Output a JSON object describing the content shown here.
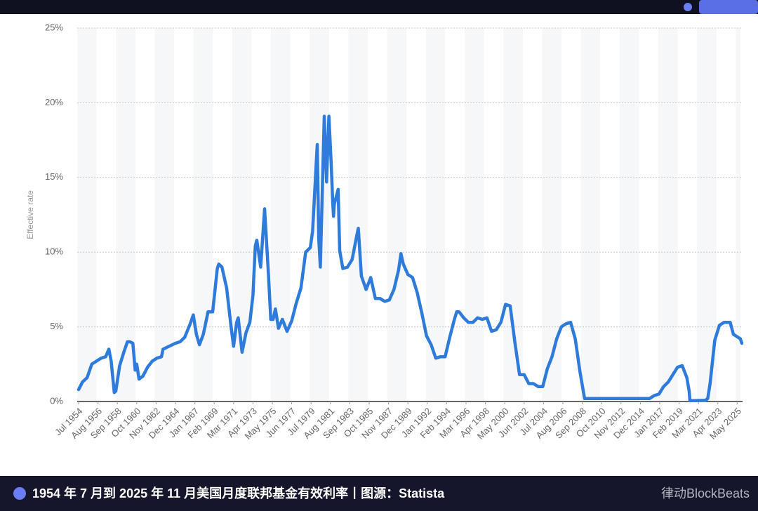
{
  "chart_data": {
    "type": "line",
    "y_label": "Effective rate",
    "caption": "1954 年 7 月到 2025 年 11 月美国月度联邦基金有效利率丨图源：Statista",
    "watermark": "律动BlockBeats",
    "color": "#2e7bdc",
    "grid": true,
    "xlim": [
      "Jul 1954",
      "Nov 2025"
    ],
    "xticks": [
      "Jul 1954",
      "Aug 1956",
      "Sep 1958",
      "Oct 1960",
      "Nov 1962",
      "Dec 1964",
      "Jan 1967",
      "Feb 1969",
      "Mar 1971",
      "Apr 1973",
      "May 1975",
      "Jun 1977",
      "Jul 1979",
      "Aug 1981",
      "Sep 1983",
      "Oct 1985",
      "Nov 1987",
      "Dec 1989",
      "Jan 1992",
      "Feb 1994",
      "Mar 1996",
      "Apr 1998",
      "May 2000",
      "Jun 2002",
      "Jul 2004",
      "Aug 2006",
      "Sep 2008",
      "Oct 2010",
      "Nov 2012",
      "Dec 2014",
      "Jan 2017",
      "Feb 2019",
      "Mar 2021",
      "Apr 2023",
      "May 2025"
    ],
    "ylim": [
      0,
      25
    ],
    "yticks": [
      {
        "value": 0,
        "label": "0%"
      },
      {
        "value": 5,
        "label": "5%"
      },
      {
        "value": 10,
        "label": "10%"
      },
      {
        "value": 15,
        "label": "15%"
      },
      {
        "value": 20,
        "label": "20%"
      },
      {
        "value": 25,
        "label": "25%"
      }
    ],
    "x": [
      "Jul 1954",
      "Dec 1954",
      "Jun 1955",
      "Dec 1955",
      "Jun 1956",
      "Dec 1956",
      "Jun 1957",
      "Oct 1957",
      "Jan 1958",
      "May 1958",
      "Jul 1958",
      "Dec 1958",
      "Jun 1959",
      "Oct 1959",
      "Jan 1960",
      "May 1960",
      "Aug 1960",
      "Oct 1960",
      "Jan 1961",
      "Jun 1961",
      "Dec 1961",
      "Jun 1962",
      "Dec 1962",
      "Jun 1963",
      "Aug 1963",
      "Dec 1964",
      "Jun 1965",
      "Dec 1965",
      "Jul 1966",
      "Nov 1966",
      "Mar 1967",
      "Jul 1967",
      "Dec 1967",
      "Jun 1968",
      "Dec 1968",
      "Jun 1969",
      "Aug 1969",
      "Dec 1969",
      "Jun 1970",
      "Dec 1970",
      "Mar 1971",
      "Jul 1971",
      "Sep 1971",
      "Feb 1972",
      "Jul 1972",
      "Dec 1972",
      "Apr 1973",
      "Jul 1973",
      "Sep 1973",
      "Feb 1974",
      "Jul 1974",
      "Dec 1974",
      "Mar 1975",
      "Jun 1975",
      "Sep 1975",
      "Jan 1976",
      "Jun 1976",
      "Dec 1976",
      "Jun 1977",
      "Dec 1977",
      "Jun 1978",
      "Dec 1978",
      "Jun 1979",
      "Sep 1979",
      "Mar 1980",
      "May 1980",
      "Jul 1980",
      "Dec 1980",
      "Mar 1981",
      "Jun 1981",
      "Sep 1981",
      "Nov 1981",
      "Dec 1981",
      "Jan 1982",
      "Jun 1982",
      "Aug 1982",
      "Dec 1982",
      "Jun 1983",
      "Dec 1983",
      "Jun 1984",
      "Aug 1984",
      "Dec 1984",
      "Jun 1985",
      "Dec 1985",
      "Jun 1986",
      "Dec 1986",
      "Jun 1987",
      "Dec 1987",
      "Jun 1988",
      "Dec 1988",
      "Mar 1989",
      "Jun 1989",
      "Dec 1989",
      "Jun 1990",
      "Dec 1990",
      "Jun 1991",
      "Dec 1991",
      "Jun 1992",
      "Dec 1992",
      "Jun 1993",
      "Dec 1993",
      "Jun 1994",
      "Dec 1994",
      "Mar 1995",
      "Jun 1995",
      "Dec 1995",
      "Jun 1996",
      "Dec 1996",
      "Jun 1997",
      "Dec 1997",
      "Jun 1998",
      "Dec 1998",
      "Jun 1999",
      "Dec 1999",
      "Jun 2000",
      "Dec 2000",
      "Jun 2001",
      "Dec 2001",
      "Jun 2002",
      "Dec 2002",
      "Jun 2003",
      "Dec 2003",
      "Jun 2004",
      "Dec 2004",
      "Jun 2005",
      "Dec 2005",
      "Jun 2006",
      "Dec 2006",
      "Jun 2007",
      "Dec 2007",
      "Jun 2008",
      "Dec 2008",
      "Jun 2009",
      "Dec 2010",
      "Dec 2012",
      "Dec 2015",
      "Jun 2016",
      "Dec 2016",
      "Jun 2017",
      "Dec 2017",
      "Jun 2018",
      "Dec 2018",
      "Jun 2019",
      "Dec 2019",
      "Mar 2020",
      "Apr 2020",
      "Dec 2021",
      "Mar 2022",
      "Jun 2022",
      "Dec 2022",
      "Jun 2023",
      "Dec 2023",
      "Aug 2024",
      "Dec 2024",
      "Jun 2025",
      "Sep 2025",
      "Nov 2025"
    ],
    "values": [
      0.8,
      1.3,
      1.6,
      2.5,
      2.7,
      2.9,
      3.0,
      3.5,
      2.7,
      0.6,
      0.7,
      2.4,
      3.4,
      4.0,
      4.0,
      3.9,
      2.1,
      2.5,
      1.5,
      1.7,
      2.3,
      2.7,
      2.9,
      3.0,
      3.5,
      3.9,
      4.0,
      4.3,
      5.2,
      5.8,
      4.5,
      3.8,
      4.5,
      6.0,
      6.0,
      8.9,
      9.2,
      9.0,
      7.6,
      4.9,
      3.7,
      5.3,
      5.6,
      3.3,
      4.6,
      5.3,
      7.1,
      10.4,
      10.8,
      9.0,
      12.9,
      8.5,
      5.5,
      5.5,
      6.2,
      4.9,
      5.5,
      4.7,
      5.4,
      6.6,
      7.6,
      10.0,
      10.3,
      11.4,
      17.2,
      10.9,
      9.0,
      19.1,
      14.7,
      19.1,
      15.9,
      13.3,
      12.4,
      13.2,
      14.2,
      10.1,
      8.9,
      9.0,
      9.5,
      11.1,
      11.6,
      8.4,
      7.5,
      8.3,
      6.9,
      6.9,
      6.7,
      6.8,
      7.5,
      8.8,
      9.9,
      9.2,
      8.5,
      8.3,
      7.3,
      5.9,
      4.4,
      3.8,
      2.9,
      3.0,
      3.0,
      4.3,
      5.5,
      6.0,
      6.0,
      5.6,
      5.3,
      5.3,
      5.6,
      5.5,
      5.6,
      4.7,
      4.8,
      5.3,
      6.5,
      6.4,
      4.0,
      1.8,
      1.8,
      1.2,
      1.2,
      1.0,
      1.0,
      2.2,
      3.0,
      4.2,
      5.0,
      5.2,
      5.3,
      4.2,
      2.0,
      0.2,
      0.2,
      0.2,
      0.2,
      0.2,
      0.4,
      0.5,
      1.0,
      1.3,
      1.8,
      2.3,
      2.4,
      1.6,
      0.7,
      0.05,
      0.08,
      0.2,
      1.2,
      4.1,
      5.1,
      5.3,
      5.3,
      4.5,
      4.3,
      4.2,
      3.9
    ]
  }
}
